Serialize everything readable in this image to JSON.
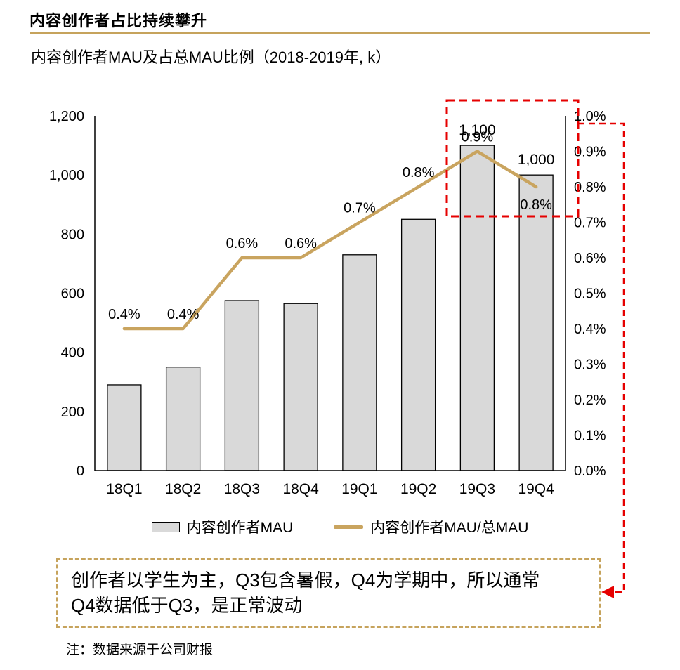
{
  "header": {
    "title": "内容创作者占比持续攀升",
    "subtitle": "内容创作者MAU及占总MAU比例（2018-2019年, k）"
  },
  "chart_data": {
    "type": "bar+line combo",
    "categories": [
      "18Q1",
      "18Q2",
      "18Q3",
      "18Q4",
      "19Q1",
      "19Q2",
      "19Q3",
      "19Q4"
    ],
    "series": [
      {
        "name": "内容创作者MAU",
        "type": "bar",
        "axis": "left",
        "values": [
          290,
          350,
          575,
          565,
          730,
          850,
          1100,
          1000
        ],
        "value_labels": [
          "",
          "",
          "",
          "",
          "",
          "",
          "1,100",
          "1,000"
        ]
      },
      {
        "name": "内容创作者MAU/总MAU",
        "type": "line",
        "axis": "right",
        "values": [
          0.4,
          0.4,
          0.6,
          0.6,
          0.7,
          0.8,
          0.9,
          0.8
        ],
        "point_labels": [
          "0.4%",
          "0.4%",
          "0.6%",
          "0.6%",
          "0.7%",
          "0.8%",
          "0.9%",
          "0.8%"
        ]
      }
    ],
    "left_axis": {
      "min": 0,
      "max": 1200,
      "step": 200,
      "tick_labels": [
        "0",
        "200",
        "400",
        "600",
        "800",
        "1,000",
        "1,200"
      ]
    },
    "right_axis": {
      "min": 0,
      "max": 1.0,
      "step": 0.1,
      "tick_labels": [
        "0.0%",
        "0.1%",
        "0.2%",
        "0.3%",
        "0.4%",
        "0.5%",
        "0.6%",
        "0.7%",
        "0.8%",
        "0.9%",
        "1.0%"
      ]
    },
    "grid": "off",
    "legend_position": "bottom-center",
    "highlight": "dashed red box around 19Q3-19Q4 peak, connected by dashed red arrow to annotation box",
    "colors": {
      "bar_fill": "#D9D9D9",
      "bar_stroke": "#000000",
      "line_gold": "#C9A45F",
      "gold": "#C6A35C",
      "highlight_red": "#E60000"
    }
  },
  "callout": {
    "lines": [
      "创作者以学生为主，Q3包含暑假，Q4为学期中，所以通常",
      "Q4数据低于Q3，是正常波动"
    ]
  },
  "footer": {
    "note": "注：数据来源于公司财报"
  }
}
